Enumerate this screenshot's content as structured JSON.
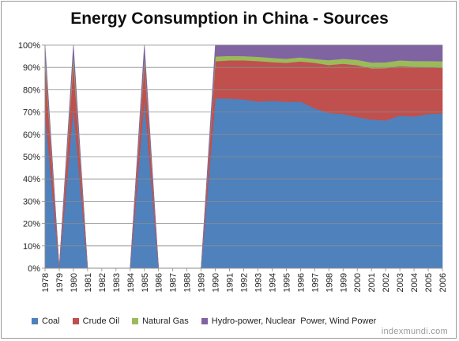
{
  "chart_data": {
    "type": "area",
    "stacked": "percent",
    "title": "Energy Consumption in China - Sources",
    "xlabel": "",
    "ylabel": "",
    "ylim": [
      0,
      100
    ],
    "yticks": [
      "0%",
      "10%",
      "20%",
      "30%",
      "40%",
      "50%",
      "60%",
      "70%",
      "80%",
      "90%",
      "100%"
    ],
    "grid": true,
    "legend": "bottom",
    "categories": [
      "1978",
      "1979",
      "1980",
      "1981",
      "1982",
      "1983",
      "1984",
      "1985",
      "1986",
      "1987",
      "1988",
      "1989",
      "1990",
      "1991",
      "1992",
      "1993",
      "1994",
      "1995",
      "1996",
      "1997",
      "1998",
      "1999",
      "2000",
      "2001",
      "2002",
      "2003",
      "2004",
      "2005",
      "2006"
    ],
    "series": [
      {
        "name": "Coal",
        "color": "#4f81bd",
        "values": [
          70.7,
          0,
          72.2,
          0,
          0,
          0,
          0,
          75.8,
          0,
          0,
          0,
          0,
          76.2,
          76.1,
          75.7,
          74.7,
          75.0,
          74.6,
          74.7,
          71.7,
          69.6,
          69.1,
          67.8,
          66.7,
          66.3,
          68.4,
          68.0,
          69.1,
          69.4
        ]
      },
      {
        "name": "Crude Oil",
        "color": "#c0504d",
        "values": [
          22.7,
          0,
          20.7,
          0,
          0,
          0,
          0,
          17.1,
          0,
          0,
          0,
          0,
          16.6,
          17.1,
          17.5,
          18.2,
          17.4,
          17.5,
          18.0,
          20.4,
          21.5,
          22.6,
          23.2,
          22.9,
          23.4,
          22.2,
          22.3,
          21.0,
          20.4
        ]
      },
      {
        "name": "Natural Gas",
        "color": "#9bbb59",
        "values": [
          3.2,
          0,
          3.1,
          0,
          0,
          0,
          0,
          2.2,
          0,
          0,
          0,
          0,
          2.1,
          2.0,
          1.9,
          1.9,
          1.9,
          1.8,
          1.8,
          1.7,
          2.2,
          2.2,
          2.4,
          2.6,
          2.6,
          2.6,
          2.6,
          2.8,
          3.0
        ]
      },
      {
        "name": "Hydro-power, Nuclear  Power, Wind Power",
        "color": "#8064a2",
        "values": [
          3.4,
          0,
          4.0,
          0,
          0,
          0,
          0,
          4.9,
          0,
          0,
          0,
          0,
          5.1,
          4.8,
          4.9,
          5.2,
          5.7,
          6.1,
          5.5,
          6.2,
          6.7,
          6.1,
          6.6,
          7.8,
          7.7,
          6.8,
          7.1,
          7.1,
          7.2
        ]
      }
    ]
  },
  "watermark": "indexmundi.com"
}
